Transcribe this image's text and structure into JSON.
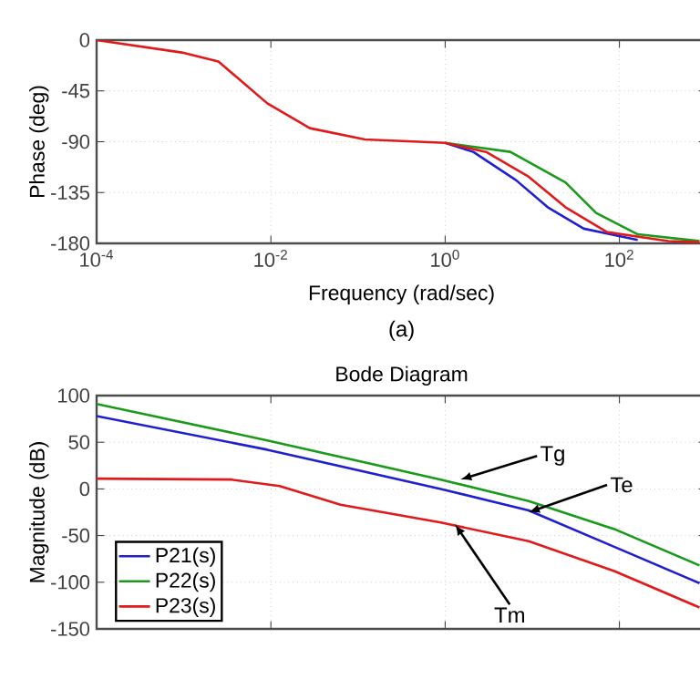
{
  "chart_data": [
    {
      "type": "line",
      "xlabel": "Frequency  (rad/sec)",
      "ylabel": "Phase (deg)",
      "log": "x",
      "grid": true,
      "legend": false,
      "xlim": [
        0.0001,
        1000
      ],
      "ylim": [
        -180,
        0
      ],
      "xticks": [
        {
          "value": 0.0001,
          "label": "10$^{-4}$"
        },
        {
          "value": 0.01,
          "label": "10$^{-2}$"
        },
        {
          "value": 1,
          "label": "10$^{0}$"
        },
        {
          "value": 100,
          "label": "10$^{2}$"
        }
      ],
      "yticks": [
        0,
        -45,
        -90,
        -135,
        -180
      ],
      "series": [
        {
          "color": "#1f1fd0",
          "x": [
            1,
            2.1,
            6.5,
            15,
            39,
            162
          ],
          "values": [
            -91,
            -99,
            -124,
            -148,
            -167,
            -177
          ]
        },
        {
          "color": "#1a9a1a",
          "x": [
            1,
            5.6,
            24,
            54,
            162,
            830
          ],
          "values": [
            -91,
            -99,
            -126,
            -153,
            -172,
            -178
          ]
        },
        {
          "color": "#e01a1a",
          "x": [
            0.0001,
            0.00095,
            0.0025,
            0.0091,
            0.028,
            0.12,
            1,
            2.95,
            9.1,
            24,
            72,
            363,
            830
          ],
          "values": [
            0,
            -11,
            -19,
            -56,
            -78,
            -88,
            -91,
            -99,
            -121,
            -148,
            -170,
            -178,
            -179
          ]
        }
      ],
      "annotations": [
        "(a)"
      ]
    },
    {
      "type": "line",
      "title": "Bode Diagram",
      "ylabel": "Magnitude (dB)",
      "log": "x",
      "grid": true,
      "legend": "bottom left",
      "tick_labels": "y",
      "xlim": [
        0.0001,
        1000
      ],
      "ylim": [
        -150,
        100
      ],
      "xticks": [
        {
          "value": 0.0001,
          "label": null
        },
        {
          "value": 0.01,
          "label": null
        },
        {
          "value": 1,
          "label": null
        },
        {
          "value": 100,
          "label": null
        }
      ],
      "yticks": [
        100,
        50,
        0,
        -50,
        -100,
        -150
      ],
      "series": [
        {
          "name": "P21(s)",
          "color": "#1f1fd0",
          "x": [
            0.0001,
            0.0091,
            0.89,
            9.1,
            87,
            830
          ],
          "values": [
            78,
            42,
            0,
            -23,
            -62,
            -101
          ]
        },
        {
          "name": "P22(s)",
          "color": "#1a9a1a",
          "x": [
            0.0001,
            0.0091,
            0.89,
            9.1,
            87,
            830
          ],
          "values": [
            91,
            52,
            10,
            -13,
            -43,
            -82
          ]
        },
        {
          "name": "P23(s)",
          "color": "#e01a1a",
          "x": [
            0.0001,
            0.0035,
            0.0126,
            0.063,
            0.89,
            9.1,
            87,
            830
          ],
          "values": [
            11,
            10,
            3,
            -17,
            -36,
            -56,
            -88,
            -127
          ]
        }
      ],
      "annotations": [
        {
          "text": "Tg",
          "x": 1.5,
          "y": 10
        },
        {
          "text": "Te",
          "x": 9.1,
          "y": -25
        },
        {
          "text": "Tm",
          "x": 1.3,
          "y": -38
        }
      ]
    }
  ]
}
